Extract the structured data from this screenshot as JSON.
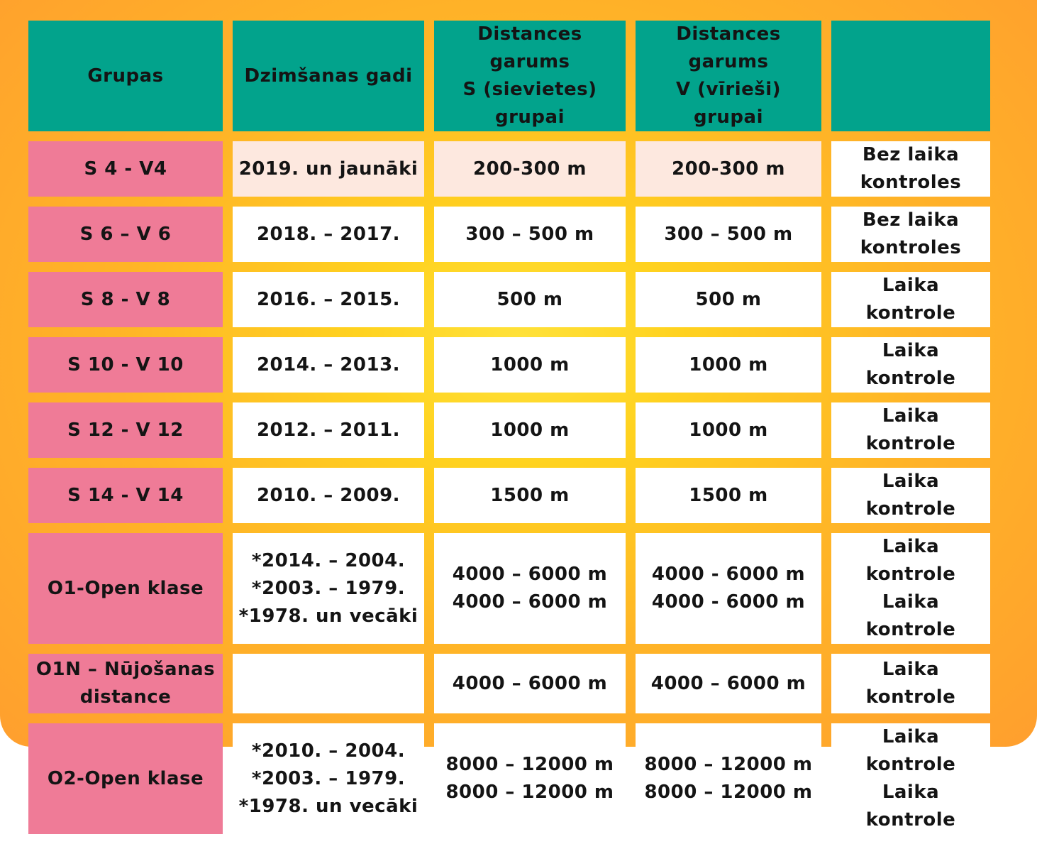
{
  "table": {
    "headers": [
      "Grupas",
      "Dzimšanas gadi",
      "Distances garums\nS (sievietes)\ngrupai",
      "Distances garums\nV (vīrieši) grupai",
      ""
    ],
    "rows": [
      {
        "group": "S 4 - V4",
        "years": "2019. un jaunāki",
        "dist_s": "200-300 m",
        "dist_v": "200-300 m",
        "timing": "Bez laika\nkontroles"
      },
      {
        "group": "S 6  – V 6",
        "years": "2018. – 2017.",
        "dist_s": "300 – 500 m",
        "dist_v": "300 –  500 m",
        "timing": "Bez laika\nkontroles"
      },
      {
        "group": "S 8  - V 8",
        "years": "2016.  – 2015.",
        "dist_s": "500 m",
        "dist_v": "500 m",
        "timing": "Laika kontrole"
      },
      {
        "group": "S 10 - V 10",
        "years": "2014. – 2013.",
        "dist_s": "1000 m",
        "dist_v": "1000 m",
        "timing": "Laika kontrole"
      },
      {
        "group": "S 12  - V 12",
        "years": "2012.  – 2011.",
        "dist_s": "1000 m",
        "dist_v": "1000 m",
        "timing": "Laika kontrole"
      },
      {
        "group": "S 14  - V 14",
        "years": "2010. – 2009.",
        "dist_s": "1500  m",
        "dist_v": "1500 m",
        "timing": "Laika kontrole"
      },
      {
        "group": "O1-Open klase",
        "years": "*2014. – 2004.\n*2003. – 1979.\n*1978. un vecāki",
        "dist_s": "4000  – 6000 m\n4000  – 6000 m",
        "dist_v": "4000  - 6000 m\n4000 - 6000 m",
        "timing": "Laika kontrole\nLaika kontrole"
      },
      {
        "group": "O1N  – Nūjošanas\ndistance",
        "years": "",
        "dist_s": "4000  – 6000 m",
        "dist_v": "4000  – 6000 m",
        "timing": "Laika kontrole"
      },
      {
        "group": "O2-Open klase",
        "years": "*2010. – 2004.\n*2003. – 1979.\n*1978. un vecāki",
        "dist_s": "8000 – 12000 m\n8000 – 12000 m",
        "dist_v": "8000 – 12000 m\n8000 – 12000 m",
        "timing": "Laika kontrole\nLaika kontrole"
      }
    ]
  },
  "colors": {
    "header_bg": "#02a38c",
    "group_bg": "#ef7b97",
    "first_row_bg": "#fde8df",
    "cell_bg": "#ffffff",
    "page_bg": "#ffb427"
  }
}
